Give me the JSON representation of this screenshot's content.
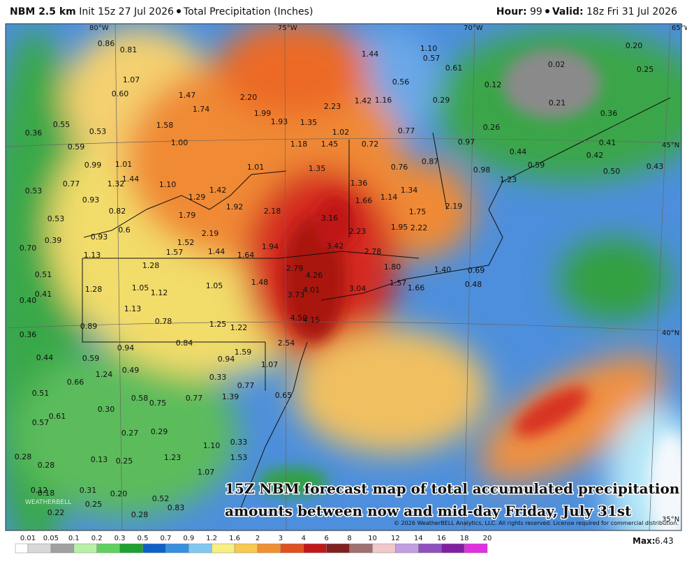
{
  "header": {
    "model": "NBM 2.5 km",
    "init": "Init 15z 27 Jul 2026",
    "product": "Total Precipitation (Inches)",
    "hour_label": "Hour:",
    "hour": "99",
    "valid_label": "Valid:",
    "valid": "18z Fri 31 Jul 2026"
  },
  "map": {
    "graticule": [
      "80°W",
      "75°W",
      "70°W",
      "65°W",
      "45°N",
      "40°N",
      "35°N"
    ],
    "point_values": [
      "0.86",
      "0.81",
      "1.44",
      "1.10",
      "0.57",
      "0.61",
      "0.20",
      "0.25",
      "0.02",
      "0.56",
      "0.12",
      "1.07",
      "0.60",
      "1.47",
      "2.20",
      "1.42",
      "1.16",
      "0.29",
      "0.21",
      "1.74",
      "1.99",
      "2.23",
      "0.36",
      "0.55",
      "1.58",
      "1.93",
      "1.35",
      "0.26",
      "0.36",
      "0.53",
      "1.02",
      "0.77",
      "0.97",
      "0.41",
      "0.59",
      "1.00",
      "1.18",
      "1.45",
      "0.72",
      "0.44",
      "0.42",
      "0.99",
      "1.01",
      "1.01",
      "1.35",
      "0.76",
      "0.87",
      "0.98",
      "0.59",
      "0.50",
      "0.43",
      "1.44",
      "1.32",
      "1.10",
      "1.42",
      "1.36",
      "0.53",
      "0.77",
      "1.23",
      "1.34",
      "1.14",
      "1.66",
      "0.93",
      "1.29",
      "2.19",
      "0.82",
      "1.92",
      "2.18",
      "1.75",
      "0.53",
      "1.79",
      "3.16",
      "0.6",
      "2.19",
      "2.23",
      "1.95",
      "2.22",
      "0.39",
      "0.93",
      "1.52",
      "1.94",
      "3.42",
      "0.70",
      "1.13",
      "1.57",
      "1.44",
      "1.64",
      "2.78",
      "1.28",
      "2.79",
      "1.80",
      "1.40",
      "0.69",
      "0.51",
      "4.26",
      "1.48",
      "1.57",
      "1.66",
      "0.48",
      "1.28",
      "1.05",
      "1.12",
      "1.05",
      "4.01",
      "3.04",
      "0.41",
      "3.73",
      "0.40",
      "1.13",
      "0.78",
      "4.50",
      "4.15",
      "1.25",
      "1.22",
      "0.89",
      "0.36",
      "0.94",
      "0.84",
      "2.54",
      "1.59",
      "0.44",
      "0.59",
      "0.94",
      "1.07",
      "0.49",
      "1.24",
      "0.33",
      "0.66",
      "0.77",
      "0.51",
      "0.75",
      "0.58",
      "0.77",
      "1.39",
      "0.65",
      "0.30",
      "0.61",
      "0.57",
      "0.27",
      "0.29",
      "1.10",
      "0.33",
      "0.28",
      "1.23",
      "1.53",
      "0.13",
      "0.25",
      "0.28",
      "1.07",
      "0.12",
      "0.18",
      "0.31",
      "0.20",
      "0.25",
      "0.52",
      "0.83",
      "0.22",
      "0.28"
    ],
    "watermark": "WEATHERBELL",
    "copyright": "© 2026 WeatherBELL Analytics, LLC. All rights reserved. License required for commercial distribution.",
    "annotation": [
      "15Z NBM forecast map of total accumulated precipitation",
      "amounts between now and mid-day Friday, July 31st"
    ]
  },
  "legend": {
    "labels": [
      0.01,
      0.05,
      0.1,
      0.2,
      0.3,
      0.5,
      0.7,
      0.9,
      1.2,
      1.6,
      2,
      3,
      4,
      6,
      8,
      10,
      12,
      14,
      16,
      18,
      20
    ],
    "colors": [
      "#ffffff",
      "#d8d8d8",
      "#a0a0a0",
      "#b8f0a8",
      "#60d060",
      "#20a030",
      "#1060c8",
      "#3890e0",
      "#80c8f0",
      "#f8f080",
      "#f8c850",
      "#f09030",
      "#e05020",
      "#c01818",
      "#802020",
      "#a07070",
      "#f0c8c8",
      "#c0a0e0",
      "#9050c0",
      "#8020a0",
      "#e030e0"
    ]
  },
  "footer": {
    "max_label": "Max:",
    "max": "6.43"
  }
}
